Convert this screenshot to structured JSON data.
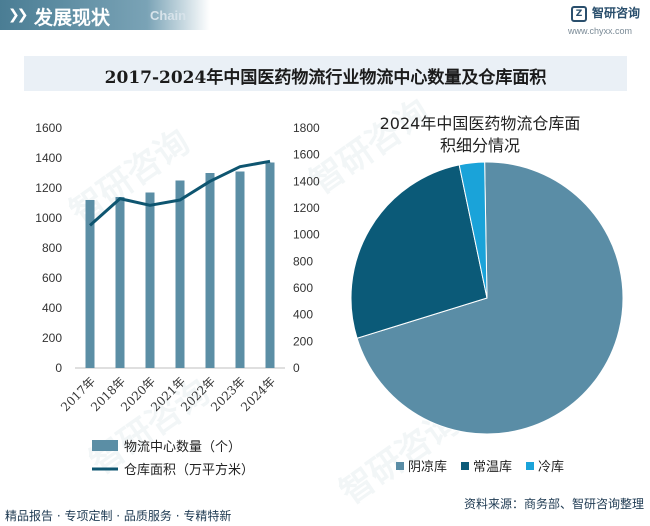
{
  "header": {
    "title": "发展现状",
    "subtitle_en": "Chain",
    "chevrons": "❯❯",
    "logo_mark": "Z",
    "logo_text": "智研咨询",
    "logo_url": "www.chyxx.com"
  },
  "watermark": "智研咨询",
  "colors": {
    "bar": "#5b8ea5",
    "line": "#0e5570",
    "pie_yinliang": "#5a8da6",
    "pie_changwen": "#0b5a78",
    "pie_lengku": "#1aa3d9"
  },
  "chart_data": [
    {
      "type": "bar",
      "title": "2017-2024年中国医药物流行业物流中心数量及仓库面积",
      "categories": [
        "2017年",
        "2018年",
        "2020年",
        "2021年",
        "2022年",
        "2023年",
        "2024年"
      ],
      "series": [
        {
          "name": "物流中心数量（个）",
          "type": "bar",
          "axis": "left",
          "values": [
            1120,
            1140,
            1170,
            1250,
            1300,
            1310,
            1370
          ]
        },
        {
          "name": "仓库面积（万平方米）",
          "type": "line",
          "axis": "right",
          "values": [
            1070,
            1270,
            1220,
            1260,
            1400,
            1510,
            1550
          ]
        }
      ],
      "left_axis": {
        "min": 0,
        "max": 1600,
        "step": 200,
        "ticks": [
          "0",
          "200",
          "400",
          "600",
          "800",
          "1000",
          "1200",
          "1400",
          "1600"
        ]
      },
      "right_axis": {
        "min": 0,
        "max": 1800,
        "step": 200,
        "ticks": [
          "0",
          "200",
          "400",
          "600",
          "800",
          "1000",
          "1200",
          "1400",
          "1600",
          "1800"
        ]
      },
      "legend": [
        "物流中心数量（个）",
        "仓库面积（万平方米）"
      ]
    },
    {
      "type": "pie",
      "title_lines": [
        "2024年中国医药物流仓库面",
        "积细分情况"
      ],
      "labels": [
        "阴凉库",
        "常温库",
        "冷库"
      ],
      "values": [
        70.5,
        26.5,
        3.0
      ],
      "legend_position": "bottom"
    }
  ],
  "footer": {
    "left": "精品报告 · 专项定制 · 品质服务 · 专精特新",
    "right": "资料来源：商务部、智研咨询整理"
  }
}
